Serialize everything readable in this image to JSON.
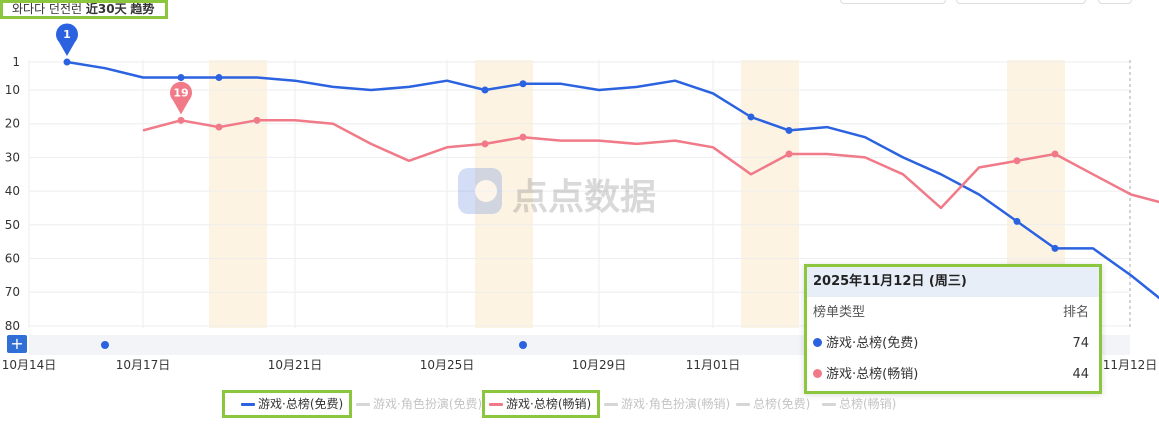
{
  "title": {
    "prefix": "와다다 던전런",
    "bold": "近30天",
    "suffix": "趋势"
  },
  "colors": {
    "free": "#2b62e0",
    "grossing": "#f07a88",
    "highlight": "#8cc63f",
    "band": "#fdf3e3"
  },
  "chart_data": {
    "type": "line",
    "x_labels": [
      "10月14日",
      "10月17日",
      "10月21日",
      "10月25日",
      "10月29日",
      "11月01日",
      "11月12日"
    ],
    "x_dates": [
      "10-14",
      "10-15",
      "10-16",
      "10-17",
      "10-18",
      "10-19",
      "10-20",
      "10-21",
      "10-22",
      "10-23",
      "10-24",
      "10-25",
      "10-26",
      "10-27",
      "10-28",
      "10-29",
      "10-30",
      "10-31",
      "11-01",
      "11-02",
      "11-03",
      "11-04",
      "11-05",
      "11-06",
      "11-07",
      "11-08",
      "11-09",
      "11-10",
      "11-11",
      "11-12"
    ],
    "y_ticks": [
      1,
      10,
      20,
      30,
      40,
      50,
      60,
      70,
      80
    ],
    "ylim": [
      1,
      80
    ],
    "y_inverted": true,
    "weekend_bands": [
      [
        "10-18",
        "10-19"
      ],
      [
        "10-25",
        "10-26"
      ],
      [
        "11-01",
        "11-02"
      ],
      [
        "11-08",
        "11-09"
      ]
    ],
    "series": [
      {
        "name": "游戏·总榜(免费)",
        "key": "free",
        "values": [
          1,
          3,
          6,
          6,
          6,
          6,
          7,
          9,
          10,
          9,
          7,
          10,
          8,
          8,
          10,
          9,
          7,
          11,
          18,
          22,
          21,
          24,
          30,
          35,
          41,
          49,
          57,
          57,
          65,
          74
        ],
        "markers": [
          0,
          3,
          4,
          11,
          12,
          18,
          19,
          25,
          26,
          29
        ]
      },
      {
        "name": "游戏·总榜(畅销)",
        "key": "grossing",
        "values": [
          null,
          null,
          22,
          19,
          21,
          19,
          19,
          20,
          26,
          31,
          27,
          26,
          24,
          25,
          25,
          26,
          25,
          27,
          35,
          29,
          29,
          30,
          35,
          45,
          33,
          31,
          29,
          35,
          41,
          44
        ],
        "markers": [
          3,
          4,
          5,
          11,
          12,
          19,
          25,
          26
        ]
      }
    ],
    "pins": [
      {
        "label": "1",
        "series": "free",
        "index": 0
      },
      {
        "label": "19",
        "series": "grossing",
        "index": 3
      }
    ],
    "event_dots": [
      {
        "index": 1
      },
      {
        "index": 12
      }
    ]
  },
  "legend": [
    {
      "label": "游戏·总榜(免费)",
      "active": true,
      "highlight": true
    },
    {
      "label": "游戏·角色扮演(免费)",
      "active": false,
      "highlight": false
    },
    {
      "label": "游戏·总榜(畅销)",
      "active": true,
      "highlight": true
    },
    {
      "label": "游戏·角色扮演(畅销)",
      "active": false,
      "highlight": false
    },
    {
      "label": "总榜(免费)",
      "active": false,
      "highlight": false
    },
    {
      "label": "总榜(畅销)",
      "active": false,
      "highlight": false
    }
  ],
  "tooltip": {
    "date": "2025年11月12日 (周三)",
    "col_type": "榜单类型",
    "col_rank": "排名",
    "rows": [
      {
        "label": "游戏·总榜(免费)",
        "value": "74"
      },
      {
        "label": "游戏·总榜(畅销)",
        "value": "44"
      }
    ]
  },
  "watermark": "点点数据",
  "zoom_label": "+"
}
